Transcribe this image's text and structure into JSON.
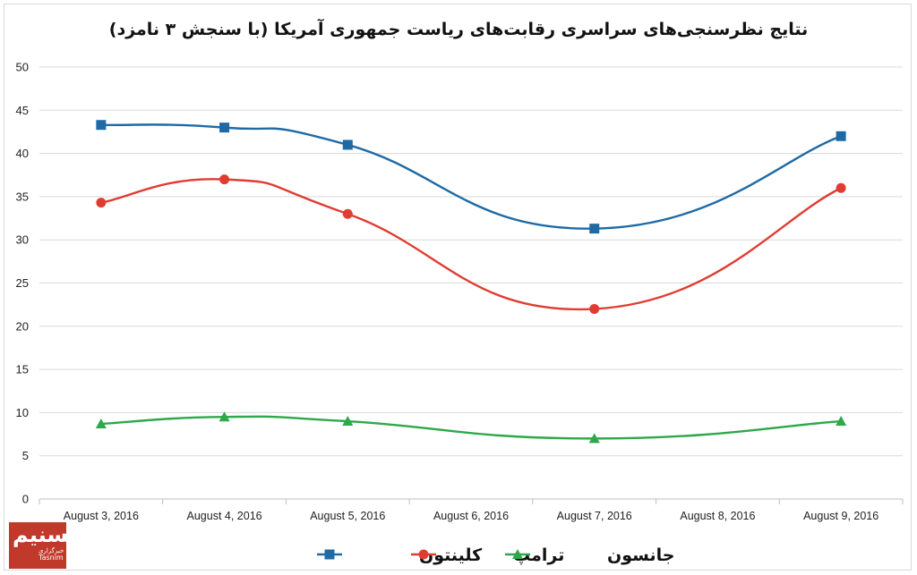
{
  "chart_data": {
    "type": "line",
    "title": "نتایج نظرسنجی‌های سراسری رقابت‌های ریاست جمهوری آمریکا (با سنجش ۳ نامزد)",
    "categories": [
      "August 3, 2016",
      "August 4, 2016",
      "August 5, 2016",
      "August 6, 2016",
      "August 7, 2016",
      "August 8, 2016",
      "August 9, 2016"
    ],
    "ylim": [
      0,
      50
    ],
    "yticks": [
      "0",
      "5",
      "10",
      "15",
      "20",
      "25",
      "30",
      "35",
      "40",
      "45",
      "50"
    ],
    "grid": true,
    "legend_position": "bottom",
    "series": [
      {
        "name": "کلینتون",
        "color": "#1f6aa5",
        "marker": "square",
        "values": [
          43.3,
          43.0,
          41.0,
          null,
          31.3,
          null,
          42.0
        ]
      },
      {
        "name": "ترامپ",
        "color": "#e03c31",
        "marker": "circle",
        "values": [
          34.3,
          37.0,
          33.0,
          null,
          22.0,
          null,
          36.0
        ]
      },
      {
        "name": "جانسون",
        "color": "#2ea84a",
        "marker": "triangle",
        "values": [
          8.7,
          9.5,
          9.0,
          null,
          7.0,
          null,
          9.0
        ]
      }
    ]
  },
  "logo": {
    "line1": "تسنیم",
    "line2": "خبرگزاری",
    "line3": "Tasnim"
  }
}
